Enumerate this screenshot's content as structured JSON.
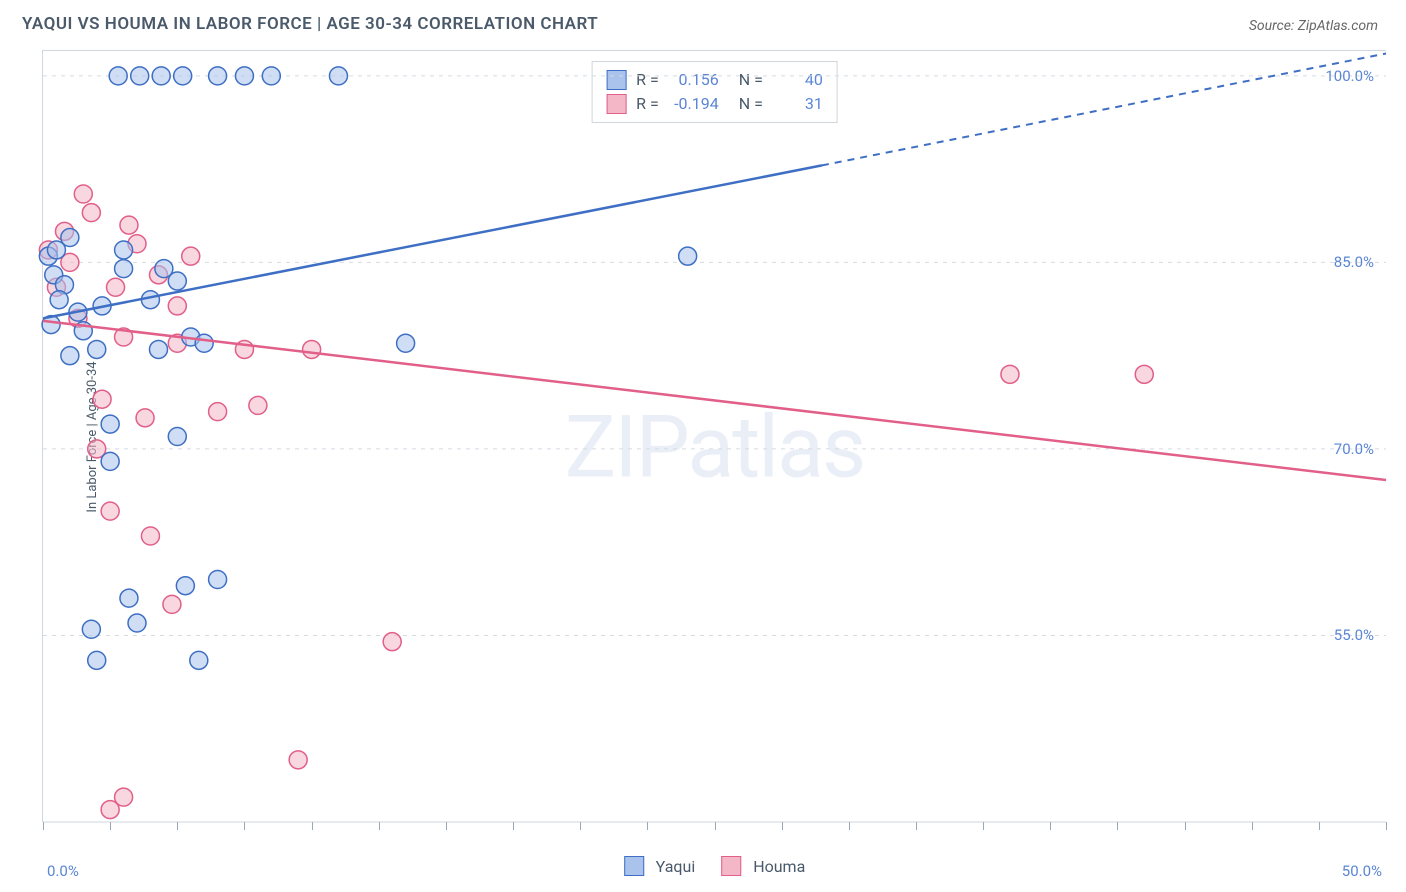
{
  "header": {
    "title": "YAQUI VS HOUMA IN LABOR FORCE | AGE 30-34 CORRELATION CHART",
    "source": "Source: ZipAtlas.com"
  },
  "watermark": "ZIPatlas",
  "axes": {
    "ylabel": "In Labor Force | Age 30-34",
    "x_min": 0.0,
    "x_max": 50.0,
    "y_min": 40.0,
    "y_max": 102.0,
    "y_ticks": [
      55.0,
      70.0,
      85.0,
      100.0
    ],
    "y_tick_labels": [
      "55.0%",
      "70.0%",
      "85.0%",
      "100.0%"
    ],
    "x_end_labels": [
      "0.0%",
      "50.0%"
    ],
    "x_minor_ticks": [
      0,
      2.5,
      5,
      7.5,
      10,
      12.5,
      15,
      17.5,
      20,
      22.5,
      25,
      27.5,
      30,
      32.5,
      35,
      37.5,
      40,
      42.5,
      45,
      47.5,
      50
    ],
    "grid_color": "#d5dbe1",
    "axis_color": "#cfd6dd",
    "tick_label_color": "#5b86d4",
    "background_color": "#ffffff"
  },
  "series": {
    "yaqui": {
      "label": "Yaqui",
      "R": "0.156",
      "N": "40",
      "stroke": "#3e6fc4",
      "fill": "#a9c3ec",
      "fill_opacity": 0.55,
      "marker_r": 9,
      "trend": {
        "x1": 0,
        "y1": 80.5,
        "x2_solid": 29,
        "y2_solid": 92.8,
        "x2": 50,
        "y2": 101.8
      },
      "points": [
        [
          0.2,
          85.5
        ],
        [
          0.4,
          84.0
        ],
        [
          0.5,
          86.0
        ],
        [
          0.8,
          83.2
        ],
        [
          1.0,
          87.0
        ],
        [
          1.3,
          81.0
        ],
        [
          1.5,
          79.5
        ],
        [
          2.0,
          78.0
        ],
        [
          2.2,
          81.5
        ],
        [
          2.5,
          72.0
        ],
        [
          2.5,
          69.0
        ],
        [
          3.0,
          84.5
        ],
        [
          3.0,
          86.0
        ],
        [
          3.2,
          58.0
        ],
        [
          3.5,
          56.0
        ],
        [
          4.0,
          82.0
        ],
        [
          4.3,
          78.0
        ],
        [
          4.5,
          84.5
        ],
        [
          5.0,
          83.5
        ],
        [
          5.0,
          71.0
        ],
        [
          5.3,
          59.0
        ],
        [
          5.5,
          79.0
        ],
        [
          5.8,
          53.0
        ],
        [
          6.0,
          78.5
        ],
        [
          6.5,
          59.5
        ],
        [
          2.8,
          100.0
        ],
        [
          3.6,
          100.0
        ],
        [
          4.4,
          100.0
        ],
        [
          5.2,
          100.0
        ],
        [
          6.5,
          100.0
        ],
        [
          7.5,
          100.0
        ],
        [
          8.5,
          100.0
        ],
        [
          11.0,
          100.0
        ],
        [
          1.8,
          55.5
        ],
        [
          2.0,
          53.0
        ],
        [
          13.5,
          78.5
        ],
        [
          24.0,
          85.5
        ],
        [
          0.3,
          80.0
        ],
        [
          0.6,
          82.0
        ],
        [
          1.0,
          77.5
        ]
      ]
    },
    "houma": {
      "label": "Houma",
      "R": "-0.194",
      "N": "31",
      "stroke": "#e15f88",
      "fill": "#f4b7c8",
      "fill_opacity": 0.55,
      "marker_r": 9,
      "trend": {
        "x1": 0,
        "y1": 80.3,
        "x2": 50,
        "y2": 67.5
      },
      "points": [
        [
          0.2,
          86.0
        ],
        [
          0.5,
          83.0
        ],
        [
          0.8,
          87.5
        ],
        [
          1.0,
          85.0
        ],
        [
          1.3,
          80.5
        ],
        [
          1.5,
          90.5
        ],
        [
          1.8,
          89.0
        ],
        [
          2.0,
          70.0
        ],
        [
          2.2,
          74.0
        ],
        [
          2.5,
          65.0
        ],
        [
          2.7,
          83.0
        ],
        [
          3.0,
          79.0
        ],
        [
          3.2,
          88.0
        ],
        [
          3.5,
          86.5
        ],
        [
          3.8,
          72.5
        ],
        [
          4.0,
          63.0
        ],
        [
          4.3,
          84.0
        ],
        [
          4.8,
          57.5
        ],
        [
          5.0,
          81.5
        ],
        [
          5.0,
          78.5
        ],
        [
          5.5,
          85.5
        ],
        [
          6.5,
          73.0
        ],
        [
          7.5,
          78.0
        ],
        [
          8.0,
          73.5
        ],
        [
          9.5,
          45.0
        ],
        [
          10.0,
          78.0
        ],
        [
          13.0,
          54.5
        ],
        [
          2.5,
          41.0
        ],
        [
          3.0,
          42.0
        ],
        [
          36.0,
          76.0
        ],
        [
          41.0,
          76.0
        ]
      ]
    }
  },
  "legend_bottom": [
    "Yaqui",
    "Houma"
  ]
}
